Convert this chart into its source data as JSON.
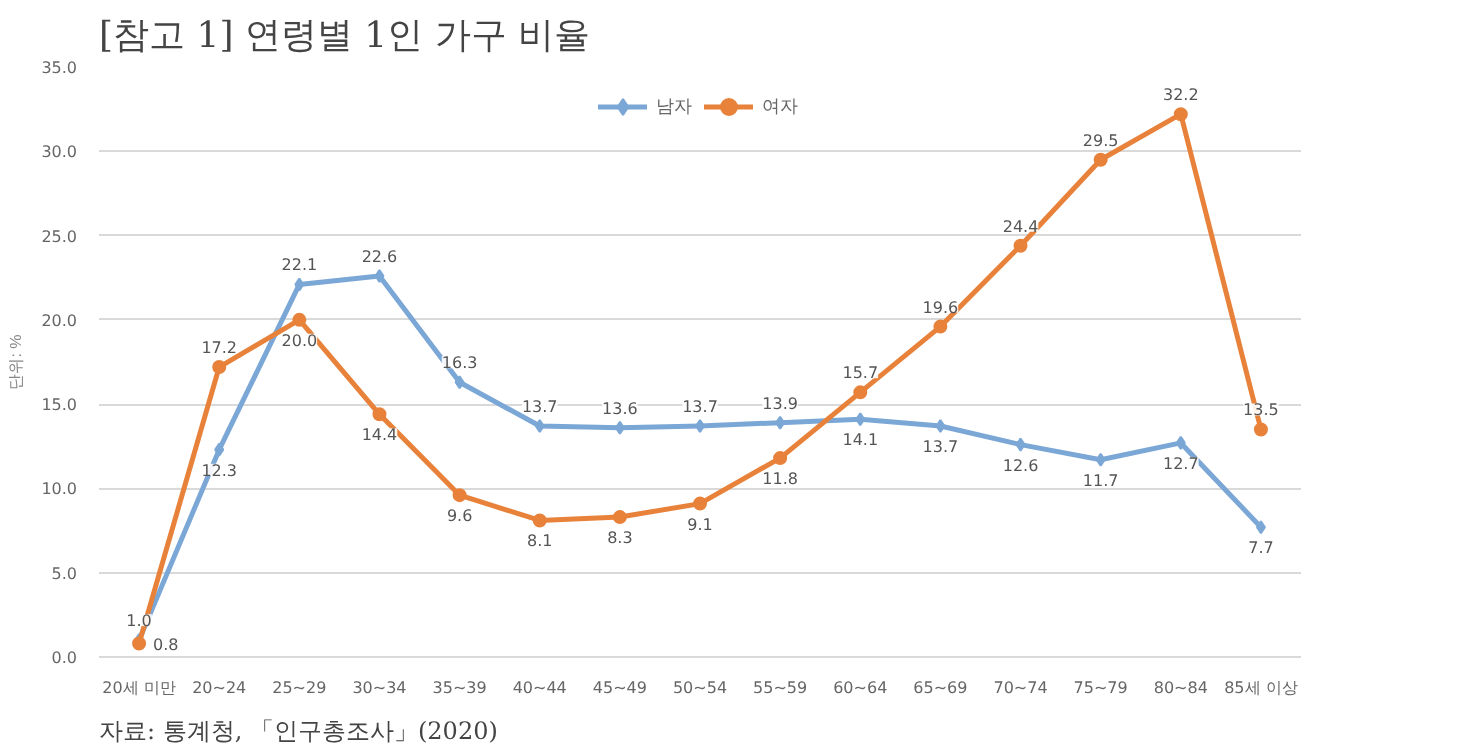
{
  "chart_data": {
    "type": "line",
    "title": "[참고 1] 연령별 1인 가구 비율",
    "ylabel": "단위: %",
    "annotations": [
      "자료: 통계청, 「인구총조사」(2020)"
    ],
    "categories": [
      "20세 미만",
      "20~24",
      "25~29",
      "30~34",
      "35~39",
      "40~44",
      "45~49",
      "50~54",
      "55~59",
      "60~64",
      "65~69",
      "70~74",
      "75~79",
      "80~84",
      "85세 이상"
    ],
    "series": [
      {
        "name": "남자",
        "color": "#7ba7d6",
        "marker": "diamond",
        "values": [
          1.0,
          12.3,
          22.1,
          22.6,
          16.3,
          13.7,
          13.6,
          13.7,
          13.9,
          14.1,
          13.7,
          12.6,
          11.7,
          12.7,
          7.7
        ],
        "value_labels": [
          "1.0",
          "12.3",
          "22.1",
          "22.6",
          "16.3",
          "13.7",
          "13.6",
          "13.7",
          "13.9",
          "14.1",
          "13.7",
          "12.6",
          "11.7",
          "12.7",
          "7.7"
        ]
      },
      {
        "name": "여자",
        "color": "#e8823a",
        "marker": "circle",
        "values": [
          0.8,
          17.2,
          20.0,
          14.4,
          9.6,
          8.1,
          8.3,
          9.1,
          11.8,
          15.7,
          19.6,
          24.4,
          29.5,
          32.2,
          13.5
        ],
        "value_labels": [
          "0.8",
          "17.2",
          "20.0",
          "14.4",
          "9.6",
          "8.1",
          "8.3",
          "9.1",
          "11.8",
          "15.7",
          "19.6",
          "24.4",
          "29.5",
          "32.2",
          "13.5"
        ]
      }
    ],
    "ylim": [
      0,
      35
    ],
    "yticks": [
      {
        "value": 0,
        "label": "0.0"
      },
      {
        "value": 5,
        "label": "5.0"
      },
      {
        "value": 10,
        "label": "10.0"
      },
      {
        "value": 15,
        "label": "15.0"
      },
      {
        "value": 20,
        "label": "20.0"
      },
      {
        "value": 25,
        "label": "25.0"
      },
      {
        "value": 30,
        "label": "30.0"
      },
      {
        "value": 35,
        "label": "35.0"
      }
    ],
    "grid": "y",
    "legend": "top",
    "line_style": "solid"
  }
}
